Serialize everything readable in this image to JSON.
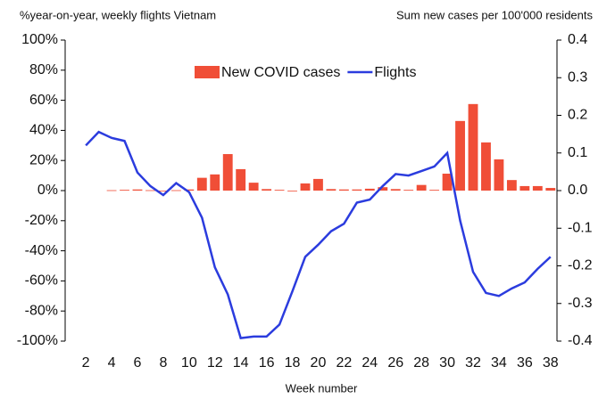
{
  "chart_data": {
    "type": "bar_line",
    "y_label": "%year-on-year, weekly flights Vietnam",
    "y2_label": "Sum new cases per 100'000 residents",
    "x_label": "Week number",
    "x": [
      2,
      3,
      4,
      5,
      6,
      7,
      8,
      9,
      10,
      11,
      12,
      13,
      14,
      15,
      16,
      17,
      18,
      19,
      20,
      21,
      22,
      23,
      24,
      25,
      26,
      27,
      28,
      29,
      30,
      31,
      32,
      33,
      34,
      35,
      36,
      37,
      38
    ],
    "series": [
      {
        "name": "New COVID cases",
        "color": "#f04e37",
        "type": "bar",
        "axis": "y2",
        "values": [
          null,
          null,
          0.001,
          0.002,
          0.003,
          0.001,
          0,
          0.001,
          0.003,
          0.034,
          0.043,
          0.097,
          0.057,
          0.021,
          0.004,
          0.002,
          0,
          0.019,
          0.031,
          0.004,
          0.003,
          0.003,
          0.005,
          0.009,
          0.004,
          0.002,
          0.015,
          0.002,
          0.045,
          0.185,
          0.23,
          0.128,
          0.083,
          0.028,
          0.012,
          0.012,
          0.007
        ]
      },
      {
        "name": "Flights",
        "color": "#2b3cde",
        "type": "line",
        "values": [
          30,
          39,
          35,
          33,
          12,
          3,
          -3,
          5,
          -1,
          -18,
          -51,
          -69,
          -98,
          -97,
          -97,
          -89,
          -67,
          -44,
          -36,
          -27,
          -22,
          -8,
          -6,
          3,
          11,
          10,
          13,
          16,
          25,
          -20,
          -54,
          -68,
          -70,
          -65,
          -61,
          -52,
          -44
        ]
      }
    ],
    "xlim": [
      0.4,
      38.5
    ],
    "xticks": [
      2,
      4,
      6,
      8,
      10,
      12,
      14,
      16,
      18,
      20,
      22,
      24,
      26,
      28,
      30,
      32,
      34,
      36,
      38
    ],
    "ylim": [
      -100,
      100
    ],
    "yticks": [
      {
        "value": -100,
        "label": "-100%"
      },
      {
        "value": -80,
        "label": "-80%"
      },
      {
        "value": -60,
        "label": "-60%"
      },
      {
        "value": -40,
        "label": "-40%"
      },
      {
        "value": -20,
        "label": "-20%"
      },
      {
        "value": 0,
        "label": "0%"
      },
      {
        "value": 20,
        "label": "20%"
      },
      {
        "value": 40,
        "label": "40%"
      },
      {
        "value": 60,
        "label": "60%"
      },
      {
        "value": 80,
        "label": "80%"
      },
      {
        "value": 100,
        "label": "100%"
      }
    ],
    "y2lim": [
      -0.4,
      0.4
    ],
    "y2ticks": [
      -0.4,
      -0.3,
      -0.2,
      -0.1,
      {
        "value": 0,
        "label": "0.0"
      },
      0.1,
      0.2,
      0.3,
      0.4
    ],
    "legend": "top"
  }
}
